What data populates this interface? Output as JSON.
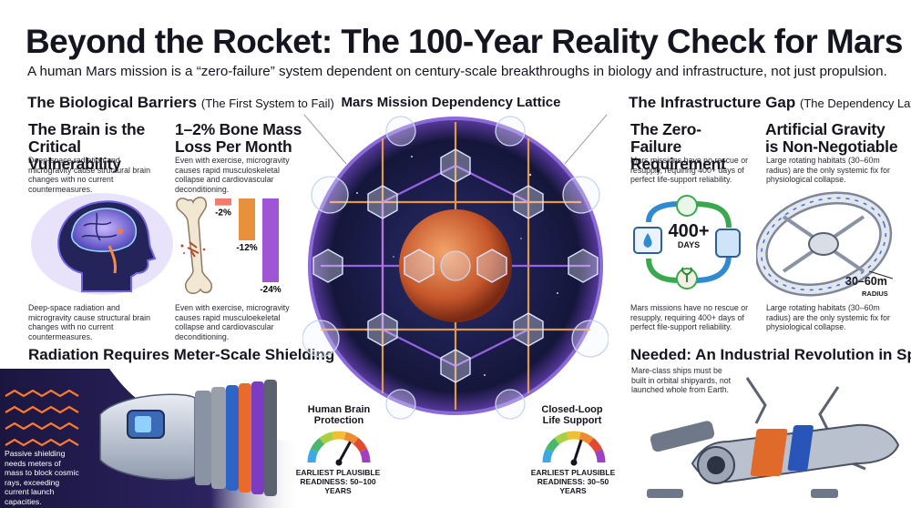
{
  "header": {
    "title": "Beyond the Rocket: The 100-Year Reality Check for Mars",
    "subtitle": "A human Mars mission is a “zero-failure” system dependent on century-scale breakthroughs in biology and infrastructure, not just propulsion."
  },
  "biological": {
    "heading": "The Biological Barriers",
    "heading_sub": "(The First System to Fail)",
    "brain": {
      "title": "The Brain is the Critical Vulnerability",
      "text_top": "Deep-space radiation and microgravity cause structural brain changes with no current countermeasures.",
      "text_bottom": "Deep-space radiation and microgravity cause structural brain changes with no current countermeasures."
    },
    "bone": {
      "title": "1–2% Bone Mass Loss Per Month",
      "text_top": "Even with exercise, microgravity causes rapid musculoskeletal collapse and cardiovascular deconditioning.",
      "text_bottom": "Even with exercise, microgravity causes rapid musculoekeletal collapse and cardiovascular deconditioning.",
      "bars": [
        {
          "label": "-2%",
          "value": -2,
          "color": "#ee7d6b"
        },
        {
          "label": "-12%",
          "value": -12,
          "color": "#e8903b"
        },
        {
          "label": "-24%",
          "value": -24,
          "color": "#a055d4"
        }
      ]
    }
  },
  "radiation": {
    "heading": "Radiation Requires Meter-Scale Shielding",
    "text": "Passive shielding needs meters of mass to block cosmic rays, exceeding current launch capacities."
  },
  "center": {
    "title": "Mars Mission Dependency Lattice",
    "gauge_left": {
      "title": "Human Brain Protection",
      "foot": "Earliest plausible readiness: 50–100 years",
      "level": 0.66
    },
    "gauge_right": {
      "title": "Closed-Loop Life Support",
      "foot": "Earliest plausible readiness: 30–50 years",
      "level": 0.6
    }
  },
  "infrastructure": {
    "heading": "The Infrastructure Gap",
    "heading_sub": "(The Dependency Lattice)",
    "zero_failure": {
      "title": "The Zero-Failure Requirement",
      "text_top": "Mars missions have no rescue or resupply, requiring 400+ days of perfect life-support reliability.",
      "big_number": "400+",
      "big_unit": "DAYS",
      "text_bottom": "Mars missions have no rescue or resupply, requiring 400+ days of perfect file-support reliability."
    },
    "gravity": {
      "title": "Artificial Gravity is Non-Negotiable",
      "text_top": "Large rotating habitats (30–60m radius) are the only systemic fix for physiological collapse.",
      "radius_value": "30–60m",
      "radius_label": "RADIUS",
      "text_bottom": "Large rotating habitats (30–60m radius) are the only systemic fix for physiological collapse."
    },
    "industrial": {
      "heading": "Needed: An Industrial Revolution in Space",
      "text": "Mare-class ships must be built in orbital shipyards, not launched whole from Earth."
    }
  }
}
